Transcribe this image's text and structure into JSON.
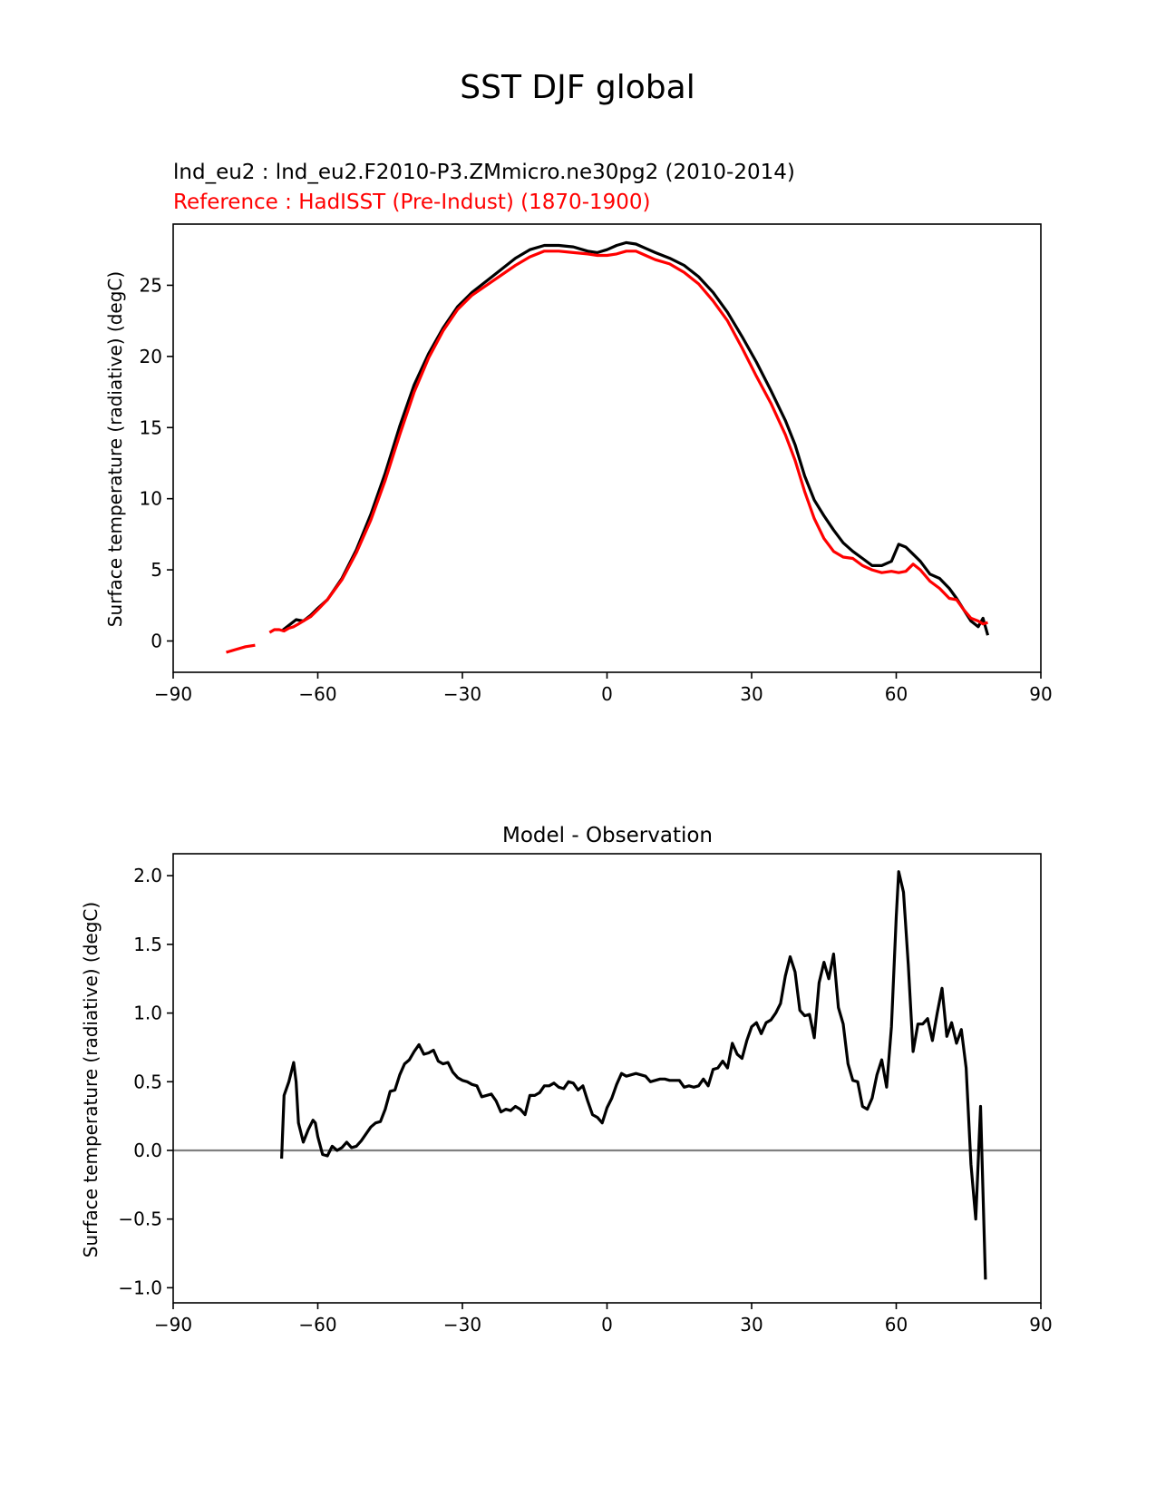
{
  "title": "SST DJF global",
  "top": {
    "test_label": "lnd_eu2 : lnd_eu2.F2010-P3.ZMmicro.ne30pg2 (2010-2014)",
    "ref_label": "Reference : HadISST (Pre-Indust) (1870-1900)",
    "ylabel": "Surface temperature (radiative) (degC)"
  },
  "bottom": {
    "title": "Model - Observation",
    "ylabel": "Surface temperature (radiative) (degC)"
  },
  "colors": {
    "test": "#000000",
    "reference": "#ff0000",
    "zero_line": "#808080"
  },
  "chart_data": [
    {
      "type": "line",
      "xlim": [
        -90,
        90
      ],
      "ylim": [
        -2.2,
        29.3
      ],
      "xticks": [
        -90,
        -60,
        -30,
        0,
        30,
        60,
        90
      ],
      "xtick_labels": [
        "−90",
        "−60",
        "−30",
        "0",
        "30",
        "60",
        "90"
      ],
      "yticks": [
        0,
        5,
        10,
        15,
        20,
        25
      ],
      "ytick_labels": [
        "0",
        "5",
        "10",
        "15",
        "20",
        "25"
      ],
      "series": [
        {
          "name": "lnd_eu2 : lnd_eu2.F2010-P3.ZMmicro.ne30pg2 (2010-2014)",
          "color": "#000000",
          "x": [
            -67.5,
            -66,
            -64.5,
            -63,
            -61.5,
            -60,
            -58,
            -55,
            -52,
            -49,
            -46,
            -43,
            -40,
            -37,
            -34,
            -31,
            -28,
            -25,
            -22,
            -19,
            -16,
            -13,
            -10,
            -7,
            -4,
            -2,
            0,
            2,
            4,
            6,
            8,
            10,
            13,
            16,
            19,
            22,
            25,
            28,
            31,
            34,
            37,
            39,
            41,
            43,
            45,
            47,
            49,
            51,
            53,
            55,
            57,
            59,
            60.5,
            62,
            63.5,
            65,
            67,
            69,
            71,
            72.5,
            74,
            75.5,
            77,
            78,
            79
          ],
          "y": [
            0.7,
            1.1,
            1.5,
            1.4,
            1.8,
            2.3,
            2.9,
            4.4,
            6.4,
            8.9,
            11.8,
            15.1,
            18.0,
            20.2,
            22.0,
            23.5,
            24.5,
            25.3,
            26.1,
            26.9,
            27.5,
            27.8,
            27.8,
            27.7,
            27.4,
            27.3,
            27.5,
            27.8,
            28.0,
            27.9,
            27.6,
            27.3,
            26.9,
            26.4,
            25.6,
            24.5,
            23.1,
            21.4,
            19.6,
            17.6,
            15.5,
            13.8,
            11.6,
            9.9,
            8.8,
            7.8,
            6.9,
            6.3,
            5.8,
            5.3,
            5.3,
            5.6,
            6.8,
            6.6,
            6.1,
            5.6,
            4.7,
            4.4,
            3.7,
            3.0,
            2.2,
            1.4,
            1.0,
            1.6,
            0.4
          ]
        },
        {
          "name": "Reference : HadISST (Pre-Indust) (1870-1900)",
          "color": "#ff0000",
          "x": [
            -79,
            -77,
            -75,
            -73,
            -72,
            -70,
            -69,
            -68,
            -67,
            -66,
            -65,
            -64,
            -63,
            -61.5,
            -60,
            -58,
            -55,
            -52,
            -49,
            -46,
            -43,
            -40,
            -37,
            -34,
            -31,
            -28,
            -25,
            -22,
            -19,
            -16,
            -13,
            -10,
            -7,
            -4,
            -2,
            0,
            2,
            4,
            6,
            8,
            10,
            13,
            16,
            19,
            22,
            25,
            28,
            31,
            34,
            37,
            39,
            41,
            43,
            45,
            47,
            49,
            51,
            53,
            55,
            57,
            59,
            60.5,
            62,
            63.5,
            65,
            67,
            69,
            71,
            72.5,
            74,
            75.5,
            77,
            78,
            79
          ],
          "y": [
            -0.8,
            -0.6,
            -0.4,
            -0.3,
            null,
            0.6,
            0.8,
            0.8,
            0.7,
            0.9,
            1.0,
            1.2,
            1.4,
            1.7,
            2.2,
            2.9,
            4.3,
            6.2,
            8.5,
            11.3,
            14.5,
            17.5,
            19.9,
            21.8,
            23.3,
            24.3,
            25.0,
            25.7,
            26.4,
            27.0,
            27.4,
            27.4,
            27.3,
            27.2,
            27.1,
            27.1,
            27.2,
            27.4,
            27.4,
            27.1,
            26.8,
            26.5,
            25.9,
            25.1,
            23.9,
            22.5,
            20.6,
            18.6,
            16.7,
            14.5,
            12.7,
            10.5,
            8.6,
            7.2,
            6.3,
            5.9,
            5.8,
            5.3,
            5.0,
            4.8,
            4.9,
            4.8,
            4.9,
            5.4,
            5.0,
            4.2,
            3.7,
            3.0,
            2.9,
            2.2,
            1.6,
            1.4,
            1.2,
            1.3
          ]
        }
      ]
    },
    {
      "type": "line",
      "title": "Model - Observation",
      "xlim": [
        -90,
        90
      ],
      "ylim": [
        -1.11,
        2.16
      ],
      "xticks": [
        -90,
        -60,
        -30,
        0,
        30,
        60,
        90
      ],
      "xtick_labels": [
        "−90",
        "−60",
        "−30",
        "0",
        "30",
        "60",
        "90"
      ],
      "yticks": [
        -1.0,
        -0.5,
        0.0,
        0.5,
        1.0,
        1.5,
        2.0
      ],
      "ytick_labels": [
        "−1.0",
        "−0.5",
        "0.0",
        "0.5",
        "1.0",
        "1.5",
        "2.0"
      ],
      "hline": 0,
      "series": [
        {
          "color": "#000000",
          "x": [
            -67.5,
            -67,
            -66,
            -65,
            -64.5,
            -64,
            -63,
            -62,
            -61,
            -60.5,
            -60,
            -59,
            -58,
            -57,
            -56,
            -55,
            -54,
            -53,
            -52,
            -51,
            -50,
            -49,
            -48,
            -47,
            -46,
            -45,
            -44,
            -43,
            -42,
            -41,
            -40,
            -39,
            -38,
            -37,
            -36,
            -35,
            -34,
            -33,
            -32,
            -31,
            -30,
            -29,
            -28,
            -27,
            -26,
            -25,
            -24,
            -23,
            -22,
            -21,
            -20,
            -19,
            -18,
            -17,
            -16,
            -15,
            -14,
            -13,
            -12,
            -11,
            -10,
            -9,
            -8,
            -7,
            -6,
            -5,
            -4,
            -3,
            -2,
            -1,
            0,
            1,
            2,
            3,
            4,
            5,
            6,
            7,
            8,
            9,
            10,
            11,
            12,
            13,
            14,
            15,
            16,
            17,
            18,
            19,
            20,
            21,
            22,
            23,
            24,
            25,
            26,
            27,
            28,
            29,
            30,
            31,
            32,
            33,
            34,
            35,
            36,
            37,
            38,
            39,
            40,
            41,
            42,
            43,
            44,
            45,
            46,
            47,
            48,
            49,
            50,
            51,
            52,
            53,
            54,
            55,
            56,
            57,
            58,
            59,
            60,
            60.5,
            61.5,
            62.5,
            63.5,
            64.5,
            65.5,
            66.5,
            67.5,
            68.5,
            69.5,
            70.5,
            71.5,
            72.5,
            73.5,
            74.5,
            75.5,
            76.5,
            77.5,
            78.5
          ],
          "y": [
            -0.06,
            0.4,
            0.5,
            0.64,
            0.5,
            0.2,
            0.06,
            0.15,
            0.22,
            0.2,
            0.1,
            -0.03,
            -0.04,
            0.03,
            0.0,
            0.02,
            0.06,
            0.02,
            0.03,
            0.07,
            0.12,
            0.17,
            0.2,
            0.21,
            0.3,
            0.43,
            0.44,
            0.55,
            0.63,
            0.66,
            0.72,
            0.77,
            0.7,
            0.71,
            0.73,
            0.65,
            0.63,
            0.64,
            0.57,
            0.53,
            0.51,
            0.5,
            0.48,
            0.47,
            0.39,
            0.4,
            0.41,
            0.36,
            0.28,
            0.3,
            0.29,
            0.32,
            0.3,
            0.26,
            0.4,
            0.4,
            0.42,
            0.47,
            0.47,
            0.49,
            0.46,
            0.45,
            0.5,
            0.49,
            0.44,
            0.47,
            0.36,
            0.26,
            0.24,
            0.2,
            0.31,
            0.38,
            0.48,
            0.56,
            0.54,
            0.55,
            0.56,
            0.55,
            0.54,
            0.5,
            0.51,
            0.52,
            0.52,
            0.51,
            0.51,
            0.51,
            0.46,
            0.47,
            0.46,
            0.47,
            0.52,
            0.47,
            0.59,
            0.6,
            0.65,
            0.6,
            0.78,
            0.7,
            0.67,
            0.8,
            0.9,
            0.93,
            0.85,
            0.93,
            0.95,
            1.0,
            1.07,
            1.27,
            1.41,
            1.3,
            1.02,
            0.98,
            0.99,
            0.82,
            1.22,
            1.37,
            1.25,
            1.43,
            1.04,
            0.92,
            0.63,
            0.51,
            0.5,
            0.32,
            0.3,
            0.38,
            0.55,
            0.66,
            0.46,
            0.9,
            1.7,
            2.03,
            1.88,
            1.35,
            0.72,
            0.92,
            0.92,
            0.96,
            0.8,
            1.0,
            1.18,
            0.83,
            0.93,
            0.78,
            0.88,
            0.6,
            -0.1,
            -0.5,
            0.32,
            -0.94
          ]
        }
      ]
    }
  ]
}
